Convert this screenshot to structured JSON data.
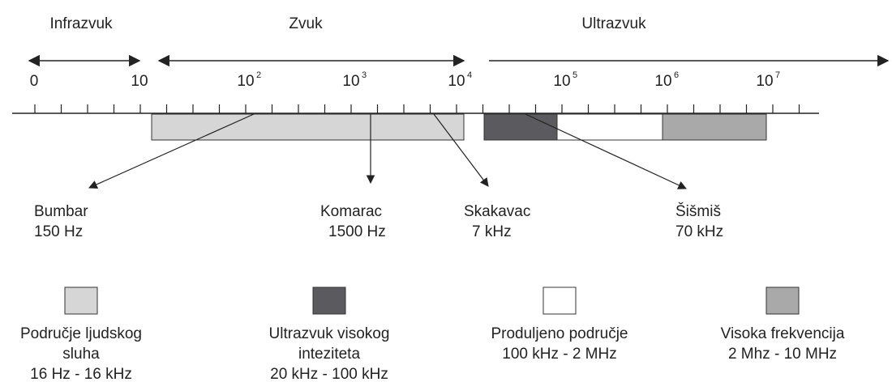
{
  "regions": [
    "Infrazvuk",
    "Zvuk",
    "Ultrazvuk"
  ],
  "scale_labels": [
    {
      "base": "0"
    },
    {
      "base": "10"
    },
    {
      "base": "10",
      "exp": "2"
    },
    {
      "base": "10",
      "exp": "3"
    },
    {
      "base": "10",
      "exp": "4"
    },
    {
      "base": "10",
      "exp": "5"
    },
    {
      "base": "10",
      "exp": "6"
    },
    {
      "base": "10",
      "exp": "7"
    }
  ],
  "examples": [
    {
      "name": "Bumbar",
      "freq": "150 Hz"
    },
    {
      "name": "Komarac",
      "freq": "1500 Hz"
    },
    {
      "name": "Skakavac",
      "freq": "7 kHz"
    },
    {
      "name": "Šišmiš",
      "freq": "70 kHz"
    }
  ],
  "legend": [
    {
      "color": "#d6d6d6",
      "lines": [
        "Područje ljudskog",
        "sluha",
        "16 Hz - 16 kHz"
      ]
    },
    {
      "color": "#5b5b5f",
      "lines": [
        "Ultrazvuk visokog",
        "inteziteta",
        "20 kHz - 100 kHz"
      ]
    },
    {
      "color": "#ffffff",
      "lines": [
        "Produljeno područje",
        "100 kHz - 2 MHz"
      ]
    },
    {
      "color": "#a9a9a9",
      "lines": [
        "Visoka frekvencija",
        "2 Mhz - 10 MHz"
      ]
    }
  ]
}
